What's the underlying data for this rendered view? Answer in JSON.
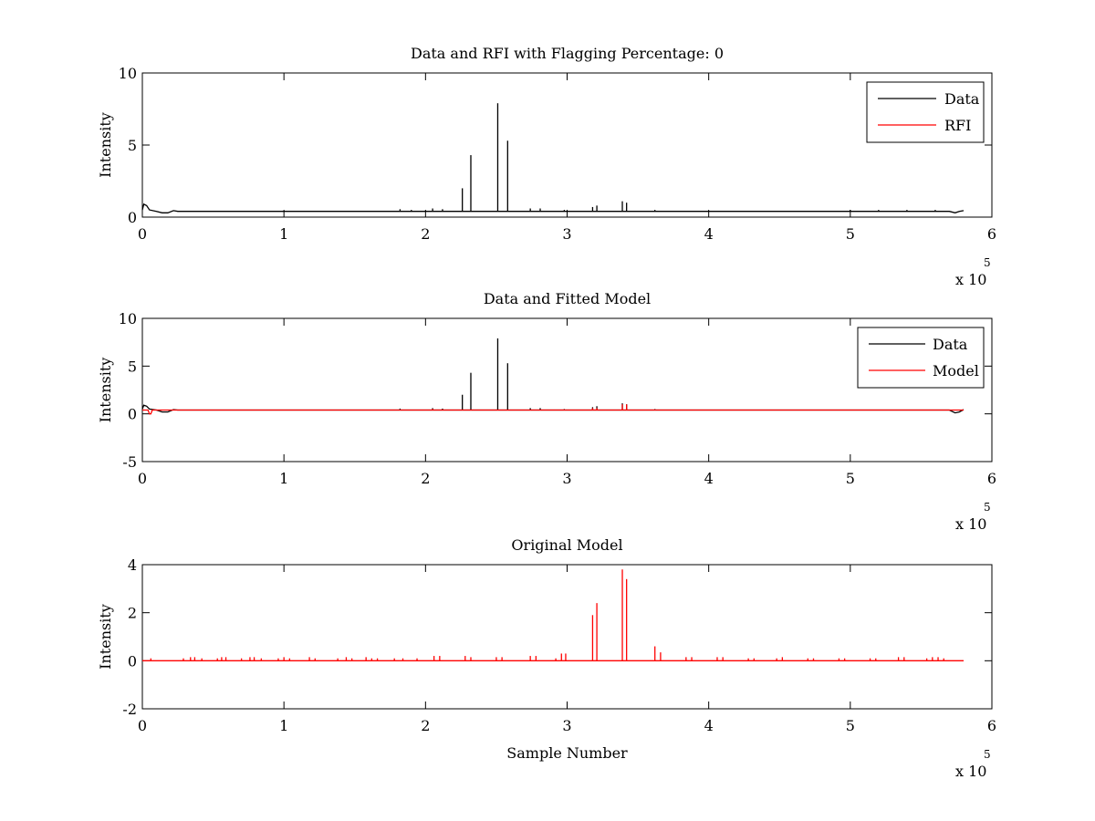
{
  "chart_data": [
    {
      "type": "line",
      "title": "Data and RFI with Flagging Percentage: 0",
      "xlabel": "",
      "ylabel": "Intensity",
      "xlim": [
        0,
        600000
      ],
      "ylim": [
        0,
        10
      ],
      "xticks": [
        0,
        100000,
        200000,
        300000,
        400000,
        500000,
        600000
      ],
      "xtick_labels": [
        "0",
        "1",
        "2",
        "3",
        "4",
        "5",
        "6"
      ],
      "yticks": [
        0,
        5,
        10
      ],
      "ytick_labels": [
        "0",
        "5",
        "10"
      ],
      "x_multiplier": {
        "base": "x 10",
        "exponent": "5"
      },
      "grid": false,
      "legend": "top-right",
      "series": [
        {
          "name": "Data",
          "color": "#000000",
          "baseline": [
            [
              0,
              0.5
            ],
            [
              1000,
              0.9
            ],
            [
              3000,
              0.8
            ],
            [
              5000,
              0.5
            ],
            [
              10000,
              0.4
            ],
            [
              14000,
              0.3
            ],
            [
              18000,
              0.3
            ],
            [
              22000,
              0.45
            ],
            [
              25000,
              0.4
            ],
            [
              570000,
              0.4
            ],
            [
              574000,
              0.3
            ],
            [
              577000,
              0.4
            ],
            [
              580000,
              0.45
            ]
          ],
          "spikes": [
            [
              182000,
              0.55
            ],
            [
              190000,
              0.5
            ],
            [
              205000,
              0.6
            ],
            [
              212000,
              0.55
            ],
            [
              226000,
              2.0
            ],
            [
              232000,
              4.3
            ],
            [
              251000,
              7.9
            ],
            [
              258000,
              5.3
            ],
            [
              274000,
              0.6
            ],
            [
              281000,
              0.6
            ],
            [
              298000,
              0.5
            ],
            [
              318000,
              0.7
            ],
            [
              321000,
              0.8
            ],
            [
              339000,
              1.1
            ],
            [
              342000,
              1.0
            ],
            [
              362000,
              0.5
            ],
            [
              500000,
              0.5
            ],
            [
              520000,
              0.5
            ],
            [
              540000,
              0.5
            ],
            [
              560000,
              0.5
            ]
          ]
        },
        {
          "name": "RFI",
          "color": "#ff0000",
          "baseline": [],
          "spikes": []
        }
      ]
    },
    {
      "type": "line",
      "title": "Data and Fitted Model",
      "xlabel": "",
      "ylabel": "Intensity",
      "xlim": [
        0,
        600000
      ],
      "ylim": [
        -5,
        10
      ],
      "xticks": [
        0,
        100000,
        200000,
        300000,
        400000,
        500000,
        600000
      ],
      "xtick_labels": [
        "0",
        "1",
        "2",
        "3",
        "4",
        "5",
        "6"
      ],
      "yticks": [
        -5,
        0,
        5,
        10
      ],
      "ytick_labels": [
        "-5",
        "0",
        "5",
        "10"
      ],
      "x_multiplier": {
        "base": "x 10",
        "exponent": "5"
      },
      "grid": false,
      "legend": "top-right",
      "series": [
        {
          "name": "Data",
          "color": "#000000",
          "baseline": [
            [
              0,
              0.5
            ],
            [
              1000,
              0.9
            ],
            [
              3000,
              0.8
            ],
            [
              5000,
              0.5
            ],
            [
              10000,
              0.4
            ],
            [
              14000,
              0.2
            ],
            [
              18000,
              0.2
            ],
            [
              22000,
              0.45
            ],
            [
              25000,
              0.4
            ],
            [
              570000,
              0.4
            ],
            [
              574000,
              0.1
            ],
            [
              577000,
              0.2
            ],
            [
              580000,
              0.45
            ]
          ],
          "spikes": [
            [
              182000,
              0.55
            ],
            [
              205000,
              0.6
            ],
            [
              212000,
              0.55
            ],
            [
              226000,
              2.0
            ],
            [
              232000,
              4.3
            ],
            [
              251000,
              7.9
            ],
            [
              258000,
              5.3
            ],
            [
              274000,
              0.6
            ],
            [
              281000,
              0.6
            ],
            [
              298000,
              0.5
            ],
            [
              318000,
              0.7
            ],
            [
              321000,
              0.8
            ],
            [
              339000,
              1.1
            ],
            [
              342000,
              1.0
            ],
            [
              362000,
              0.5
            ]
          ]
        },
        {
          "name": "Model",
          "color": "#ff0000",
          "baseline": [
            [
              0,
              0.4
            ],
            [
              4000,
              0.4
            ],
            [
              5000,
              0.0
            ],
            [
              6000,
              0.0
            ],
            [
              7000,
              0.4
            ],
            [
              580000,
              0.4
            ]
          ],
          "spikes": [
            [
              205000,
              0.5
            ],
            [
              318000,
              0.6
            ],
            [
              321000,
              0.6
            ],
            [
              339000,
              1.0
            ],
            [
              342000,
              1.0
            ]
          ]
        }
      ]
    },
    {
      "type": "line",
      "title": "Original Model",
      "xlabel": "Sample Number",
      "ylabel": "Intensity",
      "xlim": [
        0,
        600000
      ],
      "ylim": [
        -2,
        4
      ],
      "xticks": [
        0,
        100000,
        200000,
        300000,
        400000,
        500000,
        600000
      ],
      "xtick_labels": [
        "0",
        "1",
        "2",
        "3",
        "4",
        "5",
        "6"
      ],
      "yticks": [
        -2,
        0,
        2,
        4
      ],
      "ytick_labels": [
        "-2",
        "0",
        "2",
        "4"
      ],
      "x_multiplier": {
        "base": "x 10",
        "exponent": "5"
      },
      "grid": false,
      "legend": "none",
      "series": [
        {
          "name": "",
          "color": "#ff0000",
          "baseline": [
            [
              0,
              0
            ],
            [
              580000,
              0
            ]
          ],
          "spikes": [
            [
              6000,
              0.1
            ],
            [
              29000,
              0.1
            ],
            [
              34000,
              0.15
            ],
            [
              37000,
              0.15
            ],
            [
              42000,
              0.1
            ],
            [
              53000,
              0.1
            ],
            [
              56000,
              0.15
            ],
            [
              59000,
              0.15
            ],
            [
              70000,
              0.1
            ],
            [
              76000,
              0.15
            ],
            [
              79000,
              0.15
            ],
            [
              84000,
              0.1
            ],
            [
              96000,
              0.1
            ],
            [
              100000,
              0.15
            ],
            [
              104000,
              0.1
            ],
            [
              118000,
              0.15
            ],
            [
              122000,
              0.1
            ],
            [
              138000,
              0.1
            ],
            [
              144000,
              0.15
            ],
            [
              148000,
              0.1
            ],
            [
              158000,
              0.15
            ],
            [
              162000,
              0.1
            ],
            [
              166000,
              0.1
            ],
            [
              178000,
              0.1
            ],
            [
              184000,
              0.1
            ],
            [
              194000,
              0.1
            ],
            [
              206000,
              0.2
            ],
            [
              210000,
              0.2
            ],
            [
              228000,
              0.2
            ],
            [
              232000,
              0.15
            ],
            [
              250000,
              0.15
            ],
            [
              254000,
              0.15
            ],
            [
              274000,
              0.2
            ],
            [
              278000,
              0.2
            ],
            [
              292000,
              0.1
            ],
            [
              296000,
              0.3
            ],
            [
              299000,
              0.3
            ],
            [
              318000,
              1.9
            ],
            [
              321000,
              2.4
            ],
            [
              339000,
              3.8
            ],
            [
              342000,
              3.4
            ],
            [
              362000,
              0.6
            ],
            [
              366000,
              0.35
            ],
            [
              384000,
              0.15
            ],
            [
              388000,
              0.15
            ],
            [
              406000,
              0.15
            ],
            [
              410000,
              0.15
            ],
            [
              428000,
              0.1
            ],
            [
              432000,
              0.1
            ],
            [
              448000,
              0.1
            ],
            [
              452000,
              0.15
            ],
            [
              470000,
              0.1
            ],
            [
              474000,
              0.1
            ],
            [
              492000,
              0.1
            ],
            [
              496000,
              0.1
            ],
            [
              514000,
              0.1
            ],
            [
              518000,
              0.1
            ],
            [
              534000,
              0.15
            ],
            [
              538000,
              0.15
            ],
            [
              554000,
              0.1
            ],
            [
              558000,
              0.15
            ],
            [
              562000,
              0.15
            ],
            [
              566000,
              0.1
            ]
          ]
        }
      ]
    }
  ]
}
